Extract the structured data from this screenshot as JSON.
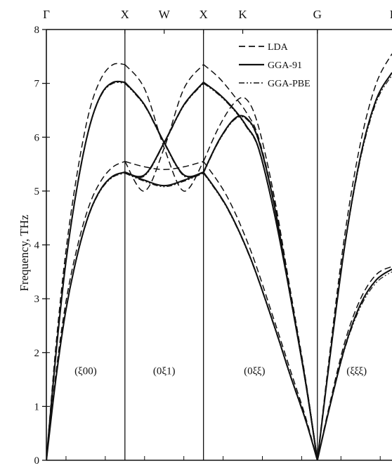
{
  "chart_data": {
    "type": "line",
    "title": "",
    "xlabel": "",
    "ylabel": "Frequency, THz",
    "ylim": [
      0,
      8
    ],
    "yticks": [
      0,
      1,
      2,
      3,
      4,
      5,
      6,
      7,
      8
    ],
    "grid": false,
    "legend_position": "top-right",
    "symmetry_points": [
      {
        "label": "Γ",
        "x": 0
      },
      {
        "label": "X",
        "x": 1
      },
      {
        "label": "W",
        "x": 1.5
      },
      {
        "label": "X",
        "x": 2
      },
      {
        "label": "K",
        "x": 2.5
      },
      {
        "label": "G",
        "x": 3.45
      }
    ],
    "partial_point": {
      "label": "L",
      "x": 4.4
    },
    "xlim": [
      0,
      4.4
    ],
    "region_labels": [
      {
        "text": "(ξ00)",
        "x": 0.5,
        "y": 1.6
      },
      {
        "text": "(0ξ1)",
        "x": 1.5,
        "y": 1.6
      },
      {
        "text": "(0ξξ)",
        "x": 2.65,
        "y": 1.6
      },
      {
        "text": "(ξξξ)",
        "x": 3.95,
        "y": 1.6
      }
    ],
    "series": [
      {
        "name": "LDA",
        "style": "dashed",
        "color": "#111111",
        "branches": [
          {
            "x": [
              0,
              0.12,
              0.25,
              0.4,
              0.55,
              0.7,
              0.85,
              1.0
            ],
            "y": [
              0,
              2.1,
              3.9,
              5.4,
              6.5,
              7.1,
              7.35,
              7.35
            ]
          },
          {
            "x": [
              0,
              0.12,
              0.25,
              0.4,
              0.55,
              0.7,
              0.85,
              1.0
            ],
            "y": [
              0,
              1.6,
              2.95,
              4.0,
              4.75,
              5.2,
              5.45,
              5.55
            ]
          },
          {
            "x": [
              1.0,
              1.25,
              1.5,
              1.75,
              2.0
            ],
            "y": [
              7.35,
              6.9,
              5.8,
              5.0,
              5.55
            ]
          },
          {
            "x": [
              1.0,
              1.25,
              1.5,
              1.75,
              2.0
            ],
            "y": [
              5.55,
              5.45,
              5.4,
              5.45,
              5.55
            ]
          },
          {
            "x": [
              1.0,
              1.25,
              1.5,
              1.75,
              2.0
            ],
            "y": [
              5.55,
              5.0,
              5.8,
              6.9,
              7.35
            ]
          },
          {
            "x": [
              2.0,
              2.2,
              2.4,
              2.55,
              2.7,
              2.9,
              3.1,
              3.3,
              3.45
            ],
            "y": [
              7.35,
              7.1,
              6.75,
              6.45,
              6.0,
              4.8,
              3.2,
              1.5,
              0
            ]
          },
          {
            "x": [
              2.0,
              2.2,
              2.4,
              2.55,
              2.7,
              2.9,
              3.1,
              3.3,
              3.45
            ],
            "y": [
              5.55,
              6.2,
              6.65,
              6.7,
              6.2,
              4.9,
              3.2,
              1.5,
              0
            ]
          },
          {
            "x": [
              2.0,
              2.3,
              2.6,
              2.9,
              3.1,
              3.3,
              3.45
            ],
            "y": [
              5.55,
              4.9,
              3.9,
              2.6,
              1.7,
              0.8,
              0
            ]
          },
          {
            "x": [
              3.45,
              3.6,
              3.8,
              4.0,
              4.2,
              4.4
            ],
            "y": [
              0,
              1.9,
              4.2,
              5.9,
              7.0,
              7.55
            ]
          },
          {
            "x": [
              3.45,
              3.6,
              3.8,
              4.0,
              4.2,
              4.4
            ],
            "y": [
              0,
              1.0,
              2.2,
              3.0,
              3.45,
              3.6
            ]
          }
        ]
      },
      {
        "name": "GGA-91",
        "style": "solid",
        "color": "#111111",
        "branches": [
          {
            "x": [
              0,
              0.12,
              0.25,
              0.4,
              0.55,
              0.7,
              0.85,
              1.0
            ],
            "y": [
              0,
              1.95,
              3.7,
              5.15,
              6.2,
              6.8,
              7.02,
              7.02
            ]
          },
          {
            "x": [
              0,
              0.12,
              0.25,
              0.4,
              0.55,
              0.7,
              0.85,
              1.0
            ],
            "y": [
              0,
              1.5,
              2.8,
              3.85,
              4.6,
              5.05,
              5.28,
              5.35
            ]
          },
          {
            "x": [
              1.0,
              1.25,
              1.5,
              1.75,
              2.0
            ],
            "y": [
              7.02,
              6.6,
              5.9,
              5.3,
              5.35
            ]
          },
          {
            "x": [
              1.0,
              1.25,
              1.5,
              1.75,
              2.0
            ],
            "y": [
              5.35,
              5.2,
              5.1,
              5.2,
              5.35
            ]
          },
          {
            "x": [
              1.0,
              1.25,
              1.5,
              1.75,
              2.0
            ],
            "y": [
              5.35,
              5.3,
              5.9,
              6.6,
              7.02
            ]
          },
          {
            "x": [
              2.0,
              2.2,
              2.4,
              2.55,
              2.7,
              2.9,
              3.1,
              3.3,
              3.45
            ],
            "y": [
              7.02,
              6.8,
              6.5,
              6.2,
              5.8,
              4.6,
              3.1,
              1.45,
              0
            ]
          },
          {
            "x": [
              2.0,
              2.2,
              2.4,
              2.55,
              2.7,
              2.9,
              3.1,
              3.3,
              3.45
            ],
            "y": [
              5.35,
              5.95,
              6.35,
              6.35,
              5.95,
              4.75,
              3.1,
              1.45,
              0
            ]
          },
          {
            "x": [
              2.0,
              2.3,
              2.6,
              2.9,
              3.1,
              3.3,
              3.45
            ],
            "y": [
              5.35,
              4.7,
              3.75,
              2.5,
              1.6,
              0.75,
              0
            ]
          },
          {
            "x": [
              3.45,
              3.6,
              3.8,
              4.0,
              4.2,
              4.4
            ],
            "y": [
              0,
              1.8,
              4.0,
              5.65,
              6.7,
              7.2
            ]
          },
          {
            "x": [
              3.45,
              3.6,
              3.8,
              4.0,
              4.2,
              4.4
            ],
            "y": [
              0,
              0.95,
              2.1,
              2.9,
              3.35,
              3.55
            ]
          }
        ]
      },
      {
        "name": "GGA-PBE",
        "style": "dash-dot-dot",
        "color": "#111111",
        "branches": [
          {
            "x": [
              0,
              0.12,
              0.25,
              0.4,
              0.55,
              0.7,
              0.85,
              1.0
            ],
            "y": [
              0,
              1.93,
              3.68,
              5.12,
              6.18,
              6.78,
              7.0,
              7.0
            ]
          },
          {
            "x": [
              0,
              0.12,
              0.25,
              0.4,
              0.55,
              0.7,
              0.85,
              1.0
            ],
            "y": [
              0,
              1.48,
              2.78,
              3.83,
              4.58,
              5.03,
              5.26,
              5.33
            ]
          },
          {
            "x": [
              1.0,
              1.25,
              1.5,
              1.75,
              2.0
            ],
            "y": [
              7.0,
              6.58,
              5.88,
              5.28,
              5.33
            ]
          },
          {
            "x": [
              1.0,
              1.25,
              1.5,
              1.75,
              2.0
            ],
            "y": [
              5.33,
              5.18,
              5.08,
              5.18,
              5.33
            ]
          },
          {
            "x": [
              1.0,
              1.25,
              1.5,
              1.75,
              2.0
            ],
            "y": [
              5.33,
              5.28,
              5.88,
              6.58,
              7.0
            ]
          },
          {
            "x": [
              2.0,
              2.2,
              2.4,
              2.55,
              2.7,
              2.9,
              3.1,
              3.3,
              3.45
            ],
            "y": [
              7.0,
              6.78,
              6.48,
              6.18,
              5.78,
              4.58,
              3.08,
              1.43,
              0
            ]
          },
          {
            "x": [
              2.0,
              2.2,
              2.4,
              2.55,
              2.7,
              2.9,
              3.1,
              3.3,
              3.45
            ],
            "y": [
              5.33,
              5.93,
              6.33,
              6.33,
              5.93,
              4.73,
              3.08,
              1.43,
              0
            ]
          },
          {
            "x": [
              2.0,
              2.3,
              2.6,
              2.9,
              3.1,
              3.3,
              3.45
            ],
            "y": [
              5.33,
              4.68,
              3.73,
              2.48,
              1.58,
              0.73,
              0
            ]
          },
          {
            "x": [
              3.45,
              3.6,
              3.8,
              4.0,
              4.2,
              4.4
            ],
            "y": [
              0,
              1.78,
              3.97,
              5.6,
              6.65,
              7.15
            ]
          },
          {
            "x": [
              3.45,
              3.6,
              3.8,
              4.0,
              4.2,
              4.4
            ],
            "y": [
              0,
              0.93,
              2.07,
              2.85,
              3.3,
              3.5
            ]
          }
        ]
      }
    ]
  }
}
